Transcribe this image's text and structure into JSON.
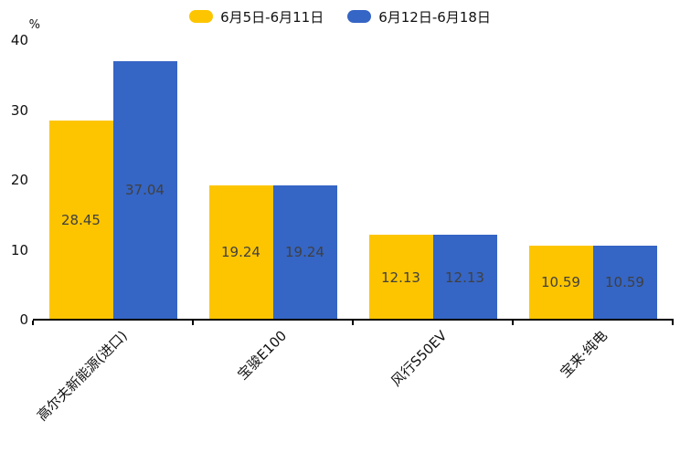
{
  "chart_data": {
    "type": "bar",
    "title": "",
    "ylabel": "%",
    "xlabel": "",
    "ylim": [
      0,
      40
    ],
    "yticks": [
      0,
      10,
      20,
      30,
      40
    ],
    "grid": false,
    "legend_position": "top-center",
    "categories": [
      "高尔夫新能源(进口)",
      "宝骏E100",
      "风行S50EV",
      "宝来·纯电"
    ],
    "series": [
      {
        "name": "6月5日-6月11日",
        "color": "#fdc500",
        "values": [
          28.45,
          19.24,
          12.13,
          10.59
        ]
      },
      {
        "name": "6月12日-6月18日",
        "color": "#3565c5",
        "values": [
          37.04,
          19.24,
          12.13,
          10.59
        ]
      }
    ],
    "value_label_color": "#404040",
    "axis_color": "#000000",
    "background_color": "#ffffff"
  }
}
